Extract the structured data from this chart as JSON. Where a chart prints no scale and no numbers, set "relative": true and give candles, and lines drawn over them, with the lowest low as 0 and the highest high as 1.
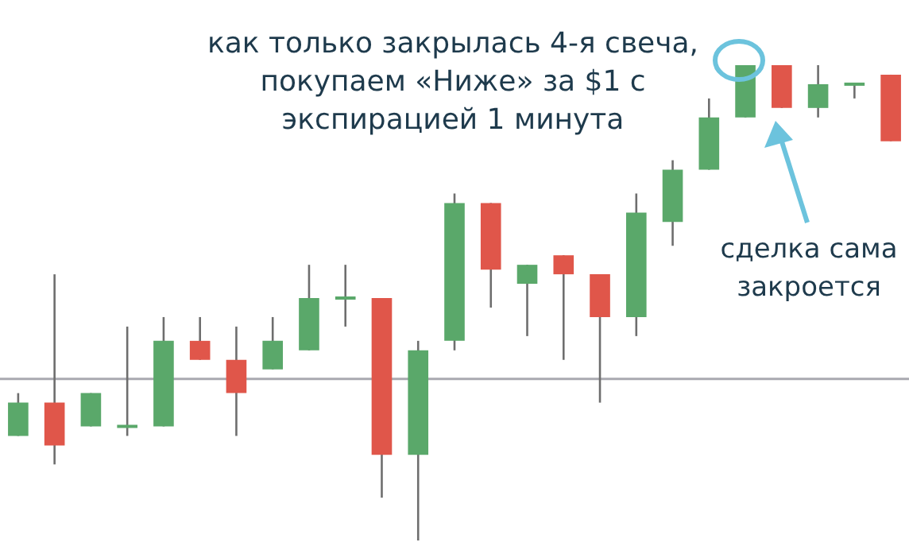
{
  "chart_data": {
    "type": "candlestick",
    "relative": true,
    "legend": false,
    "categories": [
      null,
      null,
      null,
      null,
      null,
      null,
      null,
      null,
      null,
      null,
      null,
      null,
      null,
      null,
      null,
      null,
      null,
      null,
      null,
      null,
      null,
      null,
      null,
      null,
      null
    ],
    "ohlc": [
      [
        0.22,
        0.31,
        0.22,
        0.29
      ],
      [
        0.29,
        0.56,
        0.16,
        0.2
      ],
      [
        0.24,
        0.31,
        0.24,
        0.31
      ],
      [
        0.24,
        0.45,
        0.22,
        0.24
      ],
      [
        0.24,
        0.47,
        0.24,
        0.42
      ],
      [
        0.42,
        0.47,
        0.38,
        0.38
      ],
      [
        0.38,
        0.45,
        0.22,
        0.31
      ],
      [
        0.36,
        0.47,
        0.36,
        0.42
      ],
      [
        0.4,
        0.58,
        0.4,
        0.51
      ],
      [
        0.51,
        0.58,
        0.45,
        0.51
      ],
      [
        0.51,
        0.51,
        0.09,
        0.18
      ],
      [
        0.18,
        0.42,
        0,
        0.4
      ],
      [
        0.42,
        0.73,
        0.4,
        0.71
      ],
      [
        0.71,
        0.71,
        0.49,
        0.57
      ],
      [
        0.54,
        0.58,
        0.43,
        0.58
      ],
      [
        0.6,
        0.6,
        0.38,
        0.56
      ],
      [
        0.56,
        0.56,
        0.29,
        0.47
      ],
      [
        0.47,
        0.73,
        0.43,
        0.69
      ],
      [
        0.67,
        0.8,
        0.62,
        0.78
      ],
      [
        0.78,
        0.93,
        0.78,
        0.89
      ],
      [
        0.89,
        1,
        0.89,
        1
      ],
      [
        1,
        1,
        0.91,
        0.91
      ],
      [
        0.91,
        1,
        0.89,
        0.96
      ],
      [
        0.96,
        0.96,
        0.93,
        0.96
      ],
      [
        0.98,
        0.98,
        0.84,
        0.84
      ]
    ],
    "colors": [
      "#5aa86a",
      "#e0564a",
      "#5aa86a",
      "#5aa86a",
      "#5aa86a",
      "#e0564a",
      "#e0564a",
      "#5aa86a",
      "#5aa86a",
      "#5aa86a",
      "#e0564a",
      "#5aa86a",
      "#5aa86a",
      "#e0564a",
      "#5aa86a",
      "#e0564a",
      "#e0564a",
      "#5aa86a",
      "#5aa86a",
      "#5aa86a",
      "#5aa86a",
      "#e0564a",
      "#5aa86a",
      "#5aa86a",
      "#e0564a"
    ],
    "ref_lines": [
      {
        "axis": "y",
        "value": 0.34,
        "color": "#a9a9b0"
      }
    ],
    "annotations": [
      "как только закрылась 4-я свеча,\nпокупаем «Ниже» за $1 с\nэкспирацией 1 минута",
      "сделка сама\nзакроется"
    ]
  }
}
